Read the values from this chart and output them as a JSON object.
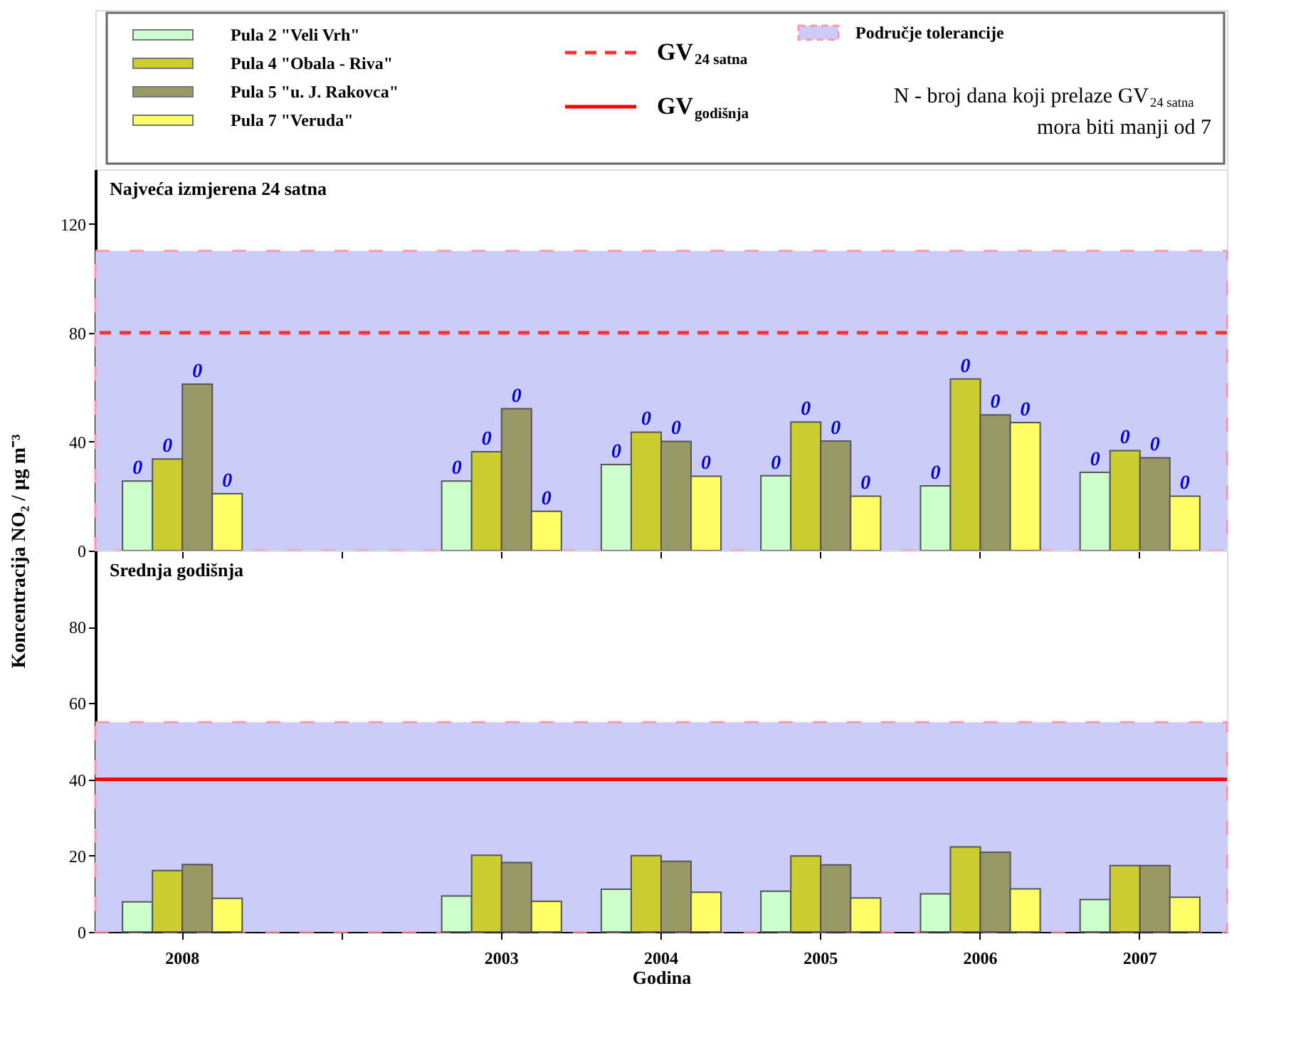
{
  "chart_data": [
    {
      "type": "bar",
      "title": "Najveća izmjerena 24 satna",
      "ylabel": "Koncentracija NO₂ / µg m⁻³",
      "categories": [
        "2008",
        null,
        "2003",
        "2004",
        "2005",
        "2006",
        "2007"
      ],
      "series": [
        {
          "name": "Pula 2 \"Veli Vrh\"",
          "color": "#ccffcc",
          "values": [
            25.5,
            null,
            25.5,
            31.6,
            27.5,
            23.8,
            28.7
          ]
        },
        {
          "name": "Pula 4 \"Obala - Riva\"",
          "color": "#cccc33",
          "values": [
            33.6,
            null,
            36.3,
            43.5,
            47.2,
            63.0,
            36.7
          ]
        },
        {
          "name": "Pula 5 \"u. J. Rakovca\"",
          "color": "#999966",
          "values": [
            61.1,
            null,
            52.1,
            40.1,
            40.2,
            49.8,
            34.1
          ]
        },
        {
          "name": "Pula 7 \"Veruda\"",
          "color": "#ffff66",
          "values": [
            20.9,
            null,
            14.4,
            27.3,
            20.0,
            47.0,
            20.0
          ]
        }
      ],
      "ylim": [
        0,
        140
      ],
      "yticks": [
        0,
        40,
        80,
        120
      ],
      "tick_labels": "y",
      "grid": false,
      "legend": "top",
      "ref_lines": [
        {
          "axis": "y",
          "value": 80,
          "label": "GV$_{24 satna}$",
          "color": "#ff3333",
          "line_style": "dashed"
        }
      ],
      "bands": [
        {
          "axis": "y",
          "from": 0,
          "to": 110,
          "label": "Područje tolerancije",
          "color": "#ccccf8"
        }
      ],
      "annotations": [
        "N - broj dana koji prelaze GV$_{24 satna}$ mora biti manji od 7",
        {
          "text": "0",
          "x": "2008",
          "y": 25.5
        },
        {
          "text": "0",
          "x": "2008",
          "y": 33.6
        },
        {
          "text": "0",
          "x": "2008",
          "y": 61.1
        },
        {
          "text": "0",
          "x": "2008",
          "y": 20.9
        },
        {
          "text": "0",
          "x": "2003",
          "y": 25.5
        },
        {
          "text": "0",
          "x": "2003",
          "y": 36.3
        },
        {
          "text": "0",
          "x": "2003",
          "y": 52.1
        },
        {
          "text": "0",
          "x": "2003",
          "y": 14.4
        },
        {
          "text": "0",
          "x": "2004",
          "y": 31.6
        },
        {
          "text": "0",
          "x": "2004",
          "y": 43.5
        },
        {
          "text": "0",
          "x": "2004",
          "y": 40.1
        },
        {
          "text": "0",
          "x": "2004",
          "y": 27.3
        },
        {
          "text": "0",
          "x": "2005",
          "y": 27.5
        },
        {
          "text": "0",
          "x": "2005",
          "y": 47.2
        },
        {
          "text": "0",
          "x": "2005",
          "y": 40.2
        },
        {
          "text": "0",
          "x": "2005",
          "y": 20.0
        },
        {
          "text": "0",
          "x": "2006",
          "y": 23.8
        },
        {
          "text": "0",
          "x": "2006",
          "y": 63.0
        },
        {
          "text": "0",
          "x": "2006",
          "y": 49.8
        },
        {
          "text": "0",
          "x": "2006",
          "y": 47.0
        },
        {
          "text": "0",
          "x": "2007",
          "y": 28.7
        },
        {
          "text": "0",
          "x": "2007",
          "y": 36.7
        },
        {
          "text": "0",
          "x": "2007",
          "y": 34.1
        },
        {
          "text": "0",
          "x": "2007",
          "y": 20.0
        }
      ]
    },
    {
      "type": "bar",
      "title": "Srednja godišnja",
      "xlabel": "Godina",
      "categories": [
        "2008",
        null,
        "2003",
        "2004",
        "2005",
        "2006",
        "2007"
      ],
      "series": [
        {
          "color": "#ccffcc",
          "values": [
            7.9,
            null,
            9.4,
            11.2,
            10.7,
            10.0,
            8.5
          ]
        },
        {
          "color": "#cccc33",
          "values": [
            16.1,
            null,
            20.1,
            20.0,
            19.9,
            22.3,
            17.4
          ]
        },
        {
          "color": "#999966",
          "values": [
            17.7,
            null,
            18.2,
            18.5,
            17.6,
            20.9,
            17.4
          ]
        },
        {
          "color": "#ffff66",
          "values": [
            8.8,
            null,
            8.0,
            10.4,
            8.9,
            11.3,
            9.1
          ]
        }
      ],
      "ylim": [
        0,
        100
      ],
      "yticks": [
        0,
        20,
        40,
        60,
        80
      ],
      "grid": false,
      "ref_lines": [
        {
          "axis": "y",
          "value": 40,
          "label": "GV$_{godišnja}$",
          "color": "#ff0000",
          "line_style": "solid"
        }
      ],
      "bands": [
        {
          "axis": "y",
          "from": 0,
          "to": 55,
          "color": "#ccccf8"
        }
      ]
    }
  ]
}
